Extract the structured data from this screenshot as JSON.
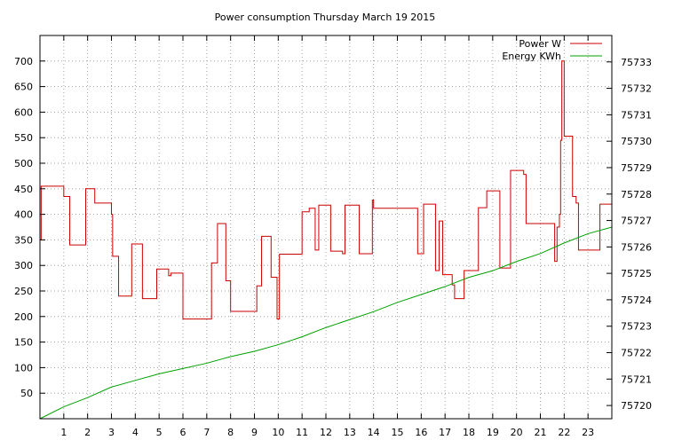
{
  "chart_data": {
    "type": "line",
    "title": "Power consumption Thursday March 19 2015",
    "xlabel": "",
    "ylabel": "",
    "xlim": [
      0,
      24
    ],
    "ylim": [
      0,
      750
    ],
    "y2lim": [
      75719.5,
      75734
    ],
    "x_ticks": [
      1,
      2,
      3,
      4,
      5,
      6,
      7,
      8,
      9,
      10,
      11,
      12,
      13,
      14,
      15,
      16,
      17,
      18,
      19,
      20,
      21,
      22,
      23
    ],
    "y_ticks": [
      50,
      100,
      150,
      200,
      250,
      300,
      350,
      400,
      450,
      500,
      550,
      600,
      650,
      700
    ],
    "y2_ticks": [
      75720,
      75721,
      75722,
      75723,
      75724,
      75725,
      75726,
      75727,
      75728,
      75729,
      75730,
      75731,
      75732,
      75733
    ],
    "grid": true,
    "legend_position": "top-right",
    "colors": {
      "power": "#cc0000",
      "energy": "#00a000"
    },
    "series": [
      {
        "name": "Power W",
        "axis": "left",
        "step": true,
        "x": [
          0,
          0.05,
          0.1,
          1.0,
          1.25,
          1.75,
          1.92,
          2.3,
          3.0,
          3.05,
          3.3,
          3.85,
          4.3,
          4.9,
          5.4,
          5.5,
          6.0,
          6.2,
          7.2,
          7.45,
          7.8,
          8.0,
          9.0,
          9.1,
          9.3,
          9.7,
          9.95,
          10.05,
          11.0,
          11.3,
          11.55,
          11.7,
          12.2,
          12.7,
          12.8,
          13.4,
          13.95,
          14.0,
          15.1,
          15.85,
          16.0,
          16.1,
          16.6,
          16.75,
          16.9,
          17.3,
          17.4,
          17.8,
          18.4,
          18.75,
          19.3,
          19.7,
          19.75,
          20.3,
          20.4,
          21.2,
          21.6,
          21.7,
          21.8,
          21.85,
          21.9,
          22.0,
          22.35,
          22.5,
          22.6,
          23.3,
          23.5,
          23.85,
          24.0
        ],
        "values": [
          350,
          455,
          455,
          435,
          340,
          340,
          450,
          422,
          400,
          318,
          240,
          342,
          235,
          293,
          280,
          285,
          195,
          195,
          305,
          382,
          270,
          210,
          210,
          260,
          357,
          277,
          195,
          322,
          405,
          412,
          330,
          418,
          328,
          323,
          418,
          323,
          428,
          412,
          412,
          323,
          323,
          420,
          290,
          387,
          282,
          262,
          235,
          290,
          413,
          446,
          295,
          295,
          486,
          478,
          382,
          382,
          308,
          375,
          400,
          545,
          700,
          553,
          435,
          422,
          330,
          330,
          420,
          420,
          405
        ]
      },
      {
        "name": "Energy KWh",
        "axis": "right",
        "step": false,
        "x": [
          0,
          1,
          2,
          3,
          4,
          5,
          6,
          7,
          8,
          9,
          10,
          11,
          12,
          13,
          14,
          15,
          16,
          17,
          18,
          19,
          20,
          21,
          22,
          23,
          24
        ],
        "values": [
          75719.5,
          75719.95,
          75720.3,
          75720.7,
          75720.95,
          75721.2,
          75721.4,
          75721.6,
          75721.85,
          75722.05,
          75722.3,
          75722.6,
          75722.95,
          75723.25,
          75723.55,
          75723.9,
          75724.2,
          75724.5,
          75724.85,
          75725.1,
          75725.45,
          75725.75,
          75726.15,
          75726.5,
          75726.75
        ]
      }
    ]
  }
}
